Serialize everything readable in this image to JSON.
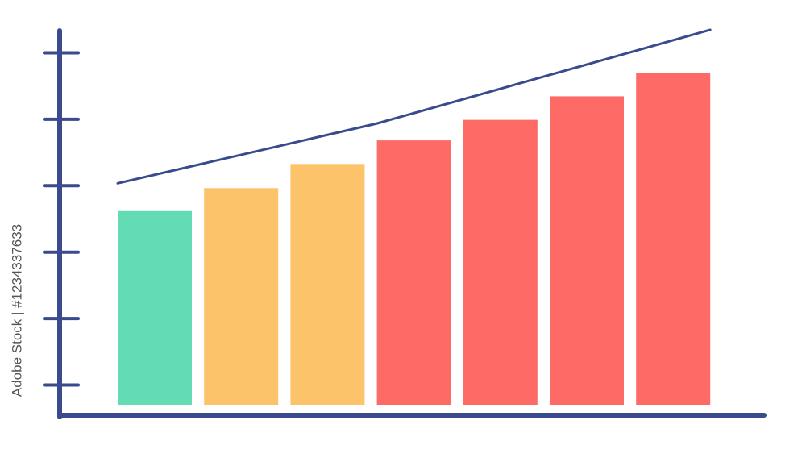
{
  "chart_data": {
    "type": "bar",
    "categories": [
      null,
      null,
      null,
      null,
      null,
      null,
      null
    ],
    "values": [
      3.38,
      3.76,
      4.16,
      4.55,
      4.89,
      5.28,
      5.66
    ],
    "colors": [
      "#63dcb6",
      "#fdc36a",
      "#fdc36a",
      "#fe6b67",
      "#fe6b67",
      "#fe6b67",
      "#fe6b67"
    ],
    "ylim": [
      0,
      6.5
    ],
    "yticks": [
      0.5,
      1.6,
      2.7,
      3.8,
      4.9,
      6
    ],
    "trend": {
      "values": [
        3.84,
        4.83,
        6.38
      ],
      "color": "#3a4a8c"
    },
    "axis_color": "#3a4a8c",
    "watermark": "Adobe Stock | #1234337633"
  }
}
